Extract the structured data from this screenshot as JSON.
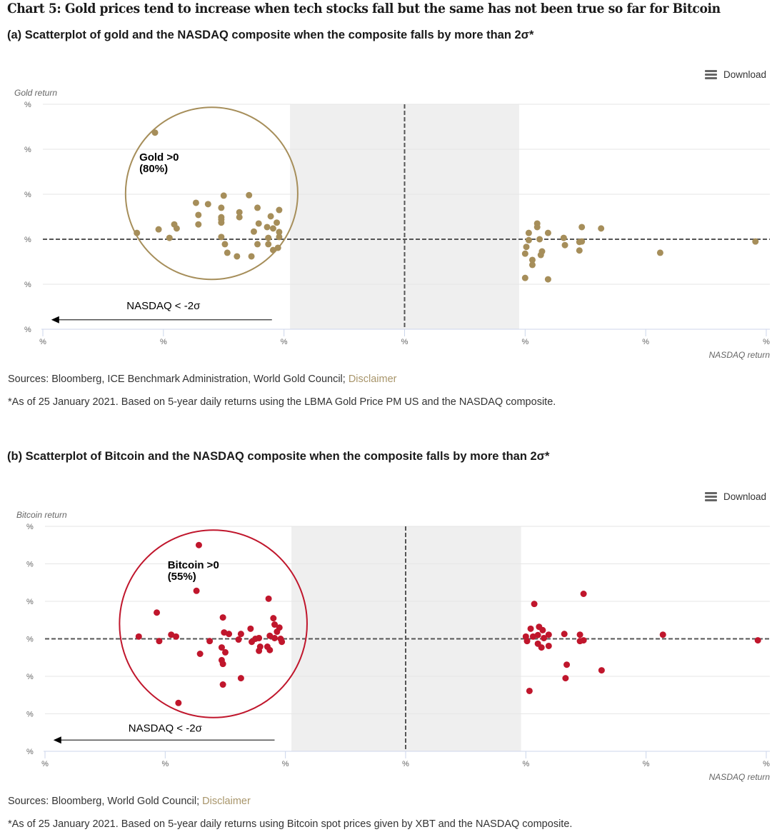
{
  "page": {
    "title": "Chart 5: Gold prices tend to increase when tech stocks fall but the same has not been true so far for Bitcoin"
  },
  "panels": [
    {
      "subtitle": "(a) Scatterplot of gold and the NASDAQ composite when the composite falls by more than 2σ*",
      "download_label": "Download",
      "download_icon": "menu-icon",
      "sources_text": "Sources: Bloomberg, ICE Benchmark Administration, World Gold Council; ",
      "disclaimer_label": "Disclaimer",
      "note": "*As of 25 January 2021. Based on 5-year daily returns using the LBMA Gold Price PM US and the NASDAQ composite."
    },
    {
      "subtitle": "(b) Scatterplot of Bitcoin and the NASDAQ composite when the composite falls by more than 2σ*",
      "download_label": "Download",
      "download_icon": "menu-icon",
      "sources_text": "Sources: Bloomberg, World Gold Council; ",
      "disclaimer_label": "Disclaimer",
      "note": "*As of 25 January 2021. Based on 5-year daily returns using Bitcoin spot prices given by XBT and the NASDAQ composite."
    }
  ],
  "chart_data": [
    {
      "type": "scatter",
      "title": "(a) Scatterplot of gold and the NASDAQ composite when the composite falls by more than 2σ*",
      "xlabel": "NASDAQ return",
      "ylabel": "Gold return",
      "units_note": "Tick labels render only '%' (numeric values not shown); values are in tick-interval units with 0 at the center/zero line.",
      "xlim": [
        -3,
        3
      ],
      "ylim": [
        -2,
        3
      ],
      "x_ticks": [
        -3,
        -2,
        -1,
        0,
        1,
        2,
        3
      ],
      "x_tick_labels": [
        "%",
        "%",
        "%",
        "%",
        "%",
        "%",
        "%"
      ],
      "y_ticks": [
        -2,
        -1,
        0,
        1,
        2,
        3
      ],
      "y_tick_labels": [
        "%",
        "%",
        "%",
        "%",
        "%",
        "%"
      ],
      "grid": true,
      "color": "#a68e5a",
      "zero_lines": "dashed",
      "shaded_band_x": [
        -0.95,
        0.95
      ],
      "shade_color": "#efefef",
      "highlight_circle": {
        "cx": -1.6,
        "cy": 1.02,
        "r_x_units": 0.714,
        "label": [
          "Gold >0",
          "(80%)"
        ],
        "label_at": [
          -2.2,
          1.75
        ]
      },
      "arrow": {
        "from": [
          -1.1,
          -1.79
        ],
        "to": [
          -2.93,
          -1.79
        ],
        "label": "NASDAQ < -2σ",
        "label_at": [
          -2.0,
          -1.48
        ]
      },
      "points": [
        [
          -2.07,
          2.37
        ],
        [
          -2.22,
          0.14
        ],
        [
          -2.04,
          0.22
        ],
        [
          -1.95,
          0.03
        ],
        [
          -1.91,
          0.33
        ],
        [
          -1.89,
          0.24
        ],
        [
          -1.73,
          0.81
        ],
        [
          -1.71,
          0.54
        ],
        [
          -1.71,
          0.33
        ],
        [
          -1.63,
          0.78
        ],
        [
          -1.5,
          0.97
        ],
        [
          -1.52,
          0.7
        ],
        [
          -1.52,
          0.49
        ],
        [
          -1.52,
          0.44
        ],
        [
          -1.52,
          0.37
        ],
        [
          -1.52,
          0.05
        ],
        [
          -1.49,
          -0.11
        ],
        [
          -1.47,
          -0.3
        ],
        [
          -1.39,
          -0.38
        ],
        [
          -1.37,
          0.6
        ],
        [
          -1.37,
          0.49
        ],
        [
          -1.29,
          0.98
        ],
        [
          -1.27,
          -0.38
        ],
        [
          -1.22,
          0.7
        ],
        [
          -1.21,
          0.35
        ],
        [
          -1.25,
          0.17
        ],
        [
          -1.22,
          -0.11
        ],
        [
          -1.14,
          0.27
        ],
        [
          -1.13,
          0.03
        ],
        [
          -1.13,
          -0.11
        ],
        [
          -1.11,
          0.51
        ],
        [
          -1.09,
          0.24
        ],
        [
          -1.06,
          0.37
        ],
        [
          -1.04,
          0.65
        ],
        [
          -1.04,
          0.16
        ],
        [
          -1.04,
          0.05
        ],
        [
          -1.09,
          -0.24
        ],
        [
          -1.05,
          -0.19
        ],
        [
          1.1,
          0.35
        ],
        [
          1.1,
          0.27
        ],
        [
          1.03,
          0.14
        ],
        [
          1.19,
          0.14
        ],
        [
          1.03,
          -0.02
        ],
        [
          1.12,
          0.0
        ],
        [
          1.32,
          0.03
        ],
        [
          1.33,
          -0.13
        ],
        [
          1.01,
          -0.17
        ],
        [
          1.0,
          -0.32
        ],
        [
          1.14,
          -0.27
        ],
        [
          1.13,
          -0.35
        ],
        [
          1.06,
          -0.46
        ],
        [
          1.06,
          -0.57
        ],
        [
          1.0,
          -0.86
        ],
        [
          1.19,
          -0.89
        ],
        [
          1.47,
          0.27
        ],
        [
          1.63,
          0.24
        ],
        [
          1.45,
          -0.06
        ],
        [
          1.47,
          -0.05
        ],
        [
          1.45,
          -0.25
        ],
        [
          2.12,
          -0.3
        ],
        [
          2.91,
          -0.05
        ]
      ]
    },
    {
      "type": "scatter",
      "title": "(b) Scatterplot of Bitcoin and the NASDAQ composite when the composite falls by more than 2σ*",
      "xlabel": "NASDAQ return",
      "ylabel": "Bitcoin return",
      "units_note": "Tick labels render only '%' (numeric values not shown); values are in tick-interval units with 0 at the center/zero line.",
      "xlim": [
        -3,
        3
      ],
      "ylim": [
        -3,
        3
      ],
      "x_ticks": [
        -3,
        -2,
        -1,
        0,
        1,
        2,
        3
      ],
      "x_tick_labels": [
        "%",
        "%",
        "%",
        "%",
        "%",
        "%",
        "%"
      ],
      "y_ticks": [
        -3,
        -2,
        -1,
        0,
        1,
        2,
        3
      ],
      "y_tick_labels": [
        "%",
        "%",
        "%",
        "%",
        "%",
        "%",
        "%"
      ],
      "grid": true,
      "color": "#c0162c",
      "zero_lines": "dashed",
      "shaded_band_x": [
        -0.95,
        0.96
      ],
      "shade_color": "#efefef",
      "highlight_circle": {
        "cx": -1.6,
        "cy": 0.4,
        "r_x_units": 0.78,
        "label": [
          "Bitcoin >0",
          "(55%)"
        ],
        "label_at": [
          -1.98,
          1.88
        ]
      },
      "arrow": {
        "from": [
          -1.09,
          -2.7
        ],
        "to": [
          -2.93,
          -2.7
        ],
        "label": "NASDAQ < -2σ",
        "label_at": [
          -2.0,
          -2.38
        ]
      },
      "points": [
        [
          -1.72,
          2.5
        ],
        [
          -1.74,
          1.28
        ],
        [
          -1.14,
          1.07
        ],
        [
          -2.07,
          0.7
        ],
        [
          -1.52,
          0.57
        ],
        [
          -1.1,
          0.55
        ],
        [
          -1.09,
          0.38
        ],
        [
          -1.05,
          0.3
        ],
        [
          -1.07,
          0.19
        ],
        [
          -1.29,
          0.27
        ],
        [
          -1.51,
          0.17
        ],
        [
          -1.47,
          0.13
        ],
        [
          -1.37,
          0.13
        ],
        [
          -2.22,
          0.06
        ],
        [
          -1.95,
          0.11
        ],
        [
          -1.91,
          0.06
        ],
        [
          -2.05,
          -0.06
        ],
        [
          -1.63,
          -0.06
        ],
        [
          -1.39,
          -0.02
        ],
        [
          -1.28,
          -0.08
        ],
        [
          -1.25,
          0.0
        ],
        [
          -1.22,
          0.02
        ],
        [
          -1.13,
          0.08
        ],
        [
          -1.09,
          0.02
        ],
        [
          -1.04,
          0.0
        ],
        [
          -1.03,
          -0.08
        ],
        [
          -1.53,
          -0.23
        ],
        [
          -1.5,
          -0.36
        ],
        [
          -1.71,
          -0.4
        ],
        [
          -1.21,
          -0.21
        ],
        [
          -1.22,
          -0.32
        ],
        [
          -1.15,
          -0.21
        ],
        [
          -1.13,
          -0.3
        ],
        [
          -1.53,
          -0.57
        ],
        [
          -1.52,
          -0.67
        ],
        [
          -1.37,
          -1.05
        ],
        [
          -1.52,
          -1.22
        ],
        [
          -1.89,
          -1.71
        ],
        [
          1.48,
          1.2
        ],
        [
          1.07,
          0.93
        ],
        [
          1.04,
          0.27
        ],
        [
          1.11,
          0.32
        ],
        [
          1.14,
          0.23
        ],
        [
          1.0,
          0.06
        ],
        [
          1.01,
          -0.06
        ],
        [
          1.06,
          0.06
        ],
        [
          1.1,
          0.1
        ],
        [
          1.15,
          0.02
        ],
        [
          1.19,
          0.11
        ],
        [
          1.32,
          0.13
        ],
        [
          1.45,
          0.11
        ],
        [
          1.45,
          -0.06
        ],
        [
          1.48,
          -0.04
        ],
        [
          1.1,
          -0.13
        ],
        [
          1.13,
          -0.23
        ],
        [
          1.19,
          -0.19
        ],
        [
          1.34,
          -0.69
        ],
        [
          1.63,
          -0.84
        ],
        [
          1.33,
          -1.05
        ],
        [
          1.03,
          -1.39
        ],
        [
          2.14,
          0.11
        ],
        [
          2.93,
          -0.04
        ]
      ]
    }
  ]
}
